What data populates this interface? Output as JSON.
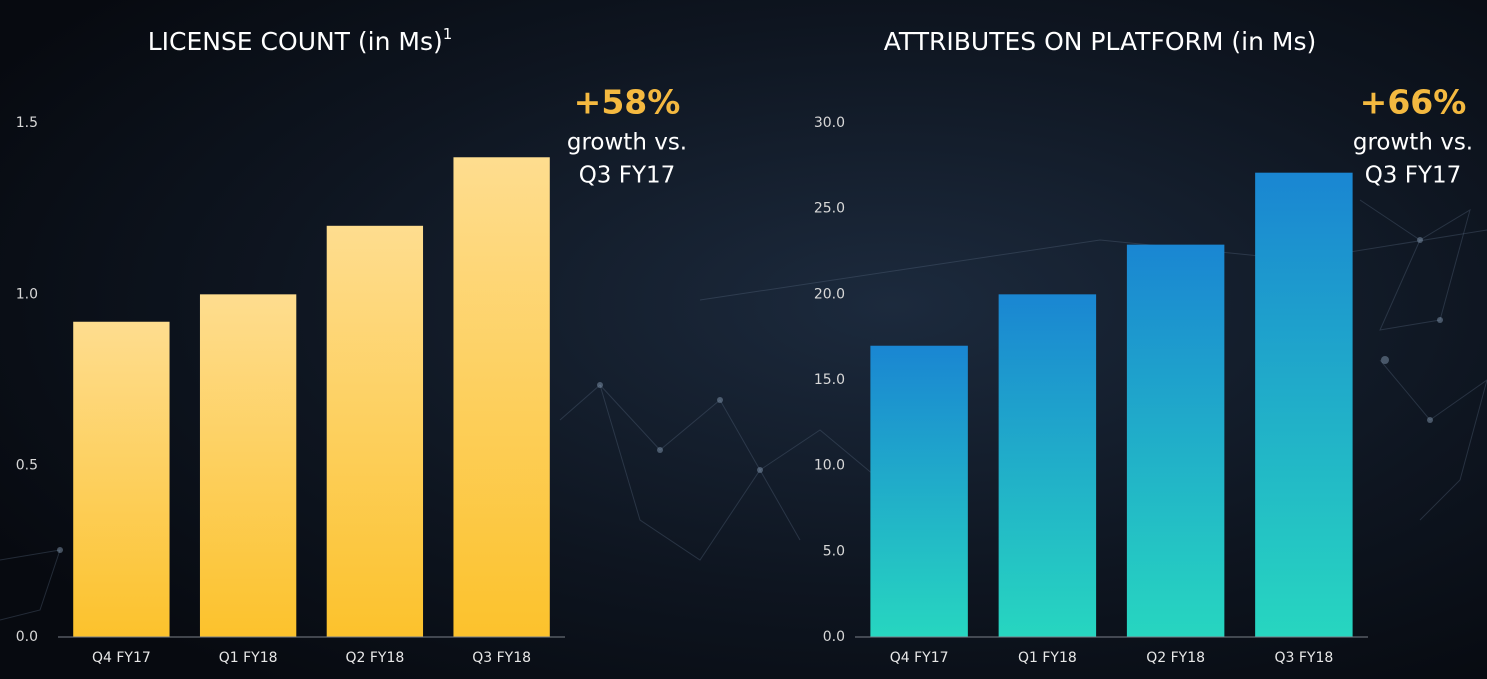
{
  "chart_data": [
    {
      "type": "bar",
      "title": "LICENSE COUNT (in Ms)",
      "title_footnote": "1",
      "categories": [
        "Q4 FY17",
        "Q1 FY18",
        "Q2 FY18",
        "Q3 FY18"
      ],
      "values": [
        0.92,
        1.0,
        1.2,
        1.4
      ],
      "gradient": [
        "#fedd8f",
        "#fcc22c"
      ],
      "ylim": [
        0,
        1.5
      ],
      "yticks": [
        {
          "value": 0,
          "label": "0.0"
        },
        0.5,
        {
          "value": 1,
          "label": "1.0"
        },
        1.5
      ],
      "annotation": {
        "highlight": "+58%",
        "lines": [
          "growth vs.",
          "Q3 FY17"
        ]
      }
    },
    {
      "type": "bar",
      "title": "ATTRIBUTES ON PLATFORM (in Ms)",
      "categories": [
        "Q4 FY17",
        "Q1 FY18",
        "Q2 FY18",
        "Q3 FY18"
      ],
      "values": [
        17.0,
        20.0,
        22.9,
        27.1
      ],
      "gradient": [
        "#1a86d2",
        "#27d6c0"
      ],
      "ylim": [
        0,
        30
      ],
      "yticks": [
        {
          "value": 0,
          "label": "0.0"
        },
        {
          "value": 5,
          "label": "5.0"
        },
        {
          "value": 10,
          "label": "10.0"
        },
        {
          "value": 15,
          "label": "15.0"
        },
        {
          "value": 20,
          "label": "20.0"
        },
        {
          "value": 25,
          "label": "25.0"
        },
        {
          "value": 30,
          "label": "30.0"
        }
      ],
      "annotation": {
        "highlight": "+66%",
        "lines": [
          "growth vs.",
          "Q3 FY17"
        ]
      }
    }
  ]
}
